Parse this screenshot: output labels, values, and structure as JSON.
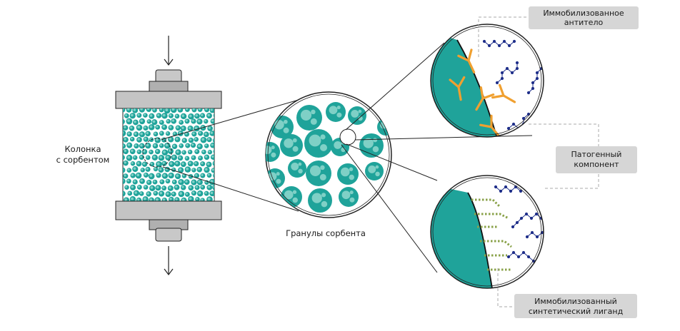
{
  "labels": {
    "column": [
      "Колонка",
      "с сорбентом"
    ],
    "granules": "Гранулы сорбента",
    "antibody": [
      "Иммобилизованное",
      "антитело"
    ],
    "pathogen": [
      "Патогенный",
      "компонент"
    ],
    "ligand": [
      "Иммобилизованный",
      "синтетический лиганд"
    ]
  },
  "colors": {
    "teal": "#1fa39a",
    "teal_light": "#7fd0c6",
    "antibody": "#f0a030",
    "pathogen": "#1f2f8a",
    "ligand": "#8aa24a",
    "label_box": "#d6d6d6",
    "cap_gray": "#9a9a9a"
  },
  "icons": [
    "arrow-down-icon",
    "antibody-y-icon",
    "pathogen-chain-icon",
    "ligand-dotted-icon"
  ]
}
